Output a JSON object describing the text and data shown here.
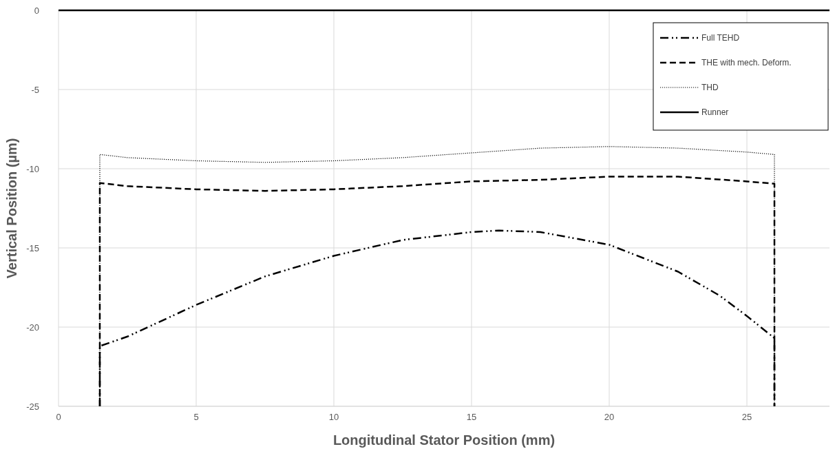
{
  "chart_data": {
    "type": "line",
    "xlabel": "Longitudinal Stator Position (mm)",
    "ylabel": "Vertical Position (µm)",
    "xlim": [
      0,
      28
    ],
    "ylim": [
      -25,
      0
    ],
    "xticks": [
      0,
      5,
      10,
      15,
      20,
      25
    ],
    "yticks": [
      -25,
      -20,
      -15,
      -10,
      -5,
      0
    ],
    "grid": true,
    "legend": "top right",
    "series": [
      {
        "name": "Full TEHD",
        "color": "#000000",
        "line_style": "dashdot",
        "x": [
          1.5,
          1.5,
          2.5,
          5,
          7.5,
          10,
          12.5,
          15,
          16,
          17.5,
          20,
          22.5,
          24,
          25,
          26,
          26
        ],
        "values": [
          -25,
          -21.2,
          -20.6,
          -18.6,
          -16.8,
          -15.5,
          -14.5,
          -14.0,
          -13.9,
          -14.0,
          -14.8,
          -16.5,
          -18.0,
          -19.3,
          -20.7,
          -25
        ]
      },
      {
        "name": "THE with mech. Deform.",
        "color": "#000000",
        "line_style": "dashed",
        "x": [
          1.5,
          1.5,
          2.5,
          5,
          7.5,
          10,
          12.5,
          15,
          17.5,
          20,
          22.5,
          25,
          26,
          26
        ],
        "values": [
          -25,
          -10.9,
          -11.1,
          -11.3,
          -11.4,
          -11.3,
          -11.1,
          -10.8,
          -10.7,
          -10.5,
          -10.5,
          -10.8,
          -10.95,
          -25
        ]
      },
      {
        "name": "THD",
        "color": "#000000",
        "line_style": "dotted",
        "x": [
          1.5,
          1.5,
          2.5,
          5,
          7.5,
          10,
          12.5,
          15,
          17.5,
          20,
          22.5,
          25,
          26,
          26
        ],
        "values": [
          -25,
          -9.1,
          -9.3,
          -9.5,
          -9.6,
          -9.5,
          -9.3,
          -9.0,
          -8.7,
          -8.6,
          -8.7,
          -8.95,
          -9.1,
          -25
        ]
      },
      {
        "name": "Runner",
        "color": "#000000",
        "line_style": "solid",
        "x": [
          0,
          28
        ],
        "values": [
          0,
          0
        ]
      }
    ]
  }
}
